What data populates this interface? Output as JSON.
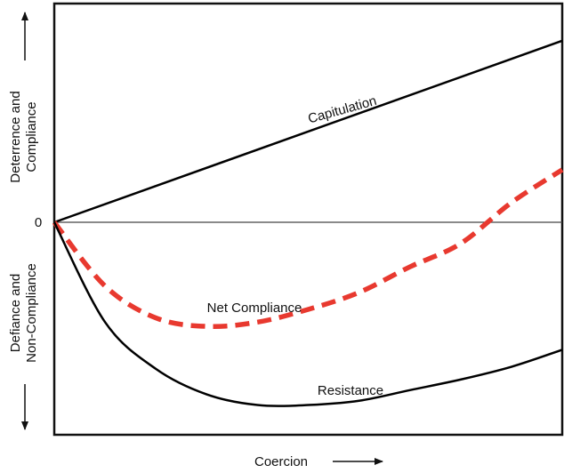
{
  "chart_data": {
    "type": "line",
    "xlabel": "Coercion",
    "ylabel_top": "Deterrence and Compliance",
    "ylabel_top_lines": [
      "Deterrence and",
      "Compliance"
    ],
    "ylabel_bottom": "Defiance and Non-Compliance",
    "ylabel_bottom_lines": [
      "Defiance and",
      "Non-Compliance"
    ],
    "y_zero_label": "0",
    "xlim": [
      0,
      10
    ],
    "ylim": [
      -10,
      10
    ],
    "grid": false,
    "zero_line": true,
    "series": [
      {
        "name": "Capitulation",
        "style": "solid",
        "color": "#000000",
        "x": [
          0,
          10
        ],
        "y": [
          0,
          8.3
        ]
      },
      {
        "name": "Net Compliance",
        "style": "dashed",
        "color": "#e8392f",
        "x": [
          0,
          1,
          2,
          3,
          4,
          5,
          6,
          7,
          8,
          9,
          10
        ],
        "y": [
          0,
          -3.0,
          -4.5,
          -4.9,
          -4.7,
          -4.1,
          -3.3,
          -2.1,
          -1.0,
          0.9,
          2.4
        ]
      },
      {
        "name": "Resistance",
        "style": "solid",
        "color": "#000000",
        "x": [
          0,
          1,
          2,
          3,
          4,
          5,
          6,
          7,
          8,
          9,
          10
        ],
        "y": [
          0,
          -4.7,
          -6.9,
          -8.1,
          -8.6,
          -8.6,
          -8.4,
          -7.9,
          -7.4,
          -6.8,
          -6.0
        ]
      }
    ]
  }
}
